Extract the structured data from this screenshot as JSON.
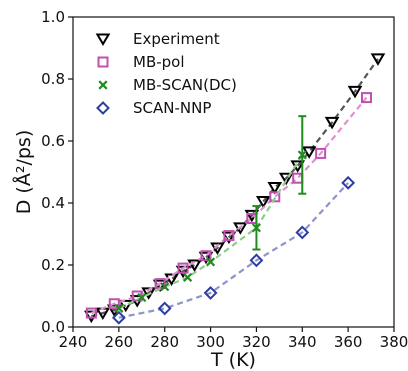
{
  "chart_data": {
    "type": "scatter",
    "xlabel": "T (K)",
    "ylabel": "D (Å²/ps)",
    "xlim": [
      240,
      380
    ],
    "ylim": [
      0.0,
      1.0
    ],
    "x_ticks": [
      "240",
      "260",
      "280",
      "300",
      "320",
      "340",
      "360",
      "380"
    ],
    "y_ticks": [
      "0.0",
      "0.2",
      "0.4",
      "0.6",
      "0.8",
      "1.0"
    ],
    "grid": false,
    "legend_position": "top-left",
    "series": [
      {
        "name": "Experiment",
        "marker": "triangle-down",
        "color": "#000000",
        "line_color": "#555555",
        "line_style": "dashed",
        "x": [
          248,
          253,
          258,
          263,
          268,
          273,
          278,
          283,
          288,
          293,
          298,
          303,
          308,
          313,
          318,
          323,
          328,
          333,
          338,
          343,
          353,
          363,
          373
        ],
        "y": [
          0.035,
          0.045,
          0.055,
          0.07,
          0.085,
          0.11,
          0.135,
          0.155,
          0.18,
          0.2,
          0.225,
          0.255,
          0.29,
          0.32,
          0.36,
          0.405,
          0.45,
          0.48,
          0.52,
          0.565,
          0.66,
          0.76,
          0.865
        ]
      },
      {
        "name": "MB-pol",
        "marker": "square",
        "color": "#c050b0",
        "line_color": "#e090d0",
        "line_style": "dashed",
        "x": [
          248,
          258,
          268,
          278,
          288,
          298,
          308,
          318,
          328,
          338,
          348,
          368
        ],
        "y": [
          0.045,
          0.075,
          0.1,
          0.14,
          0.19,
          0.23,
          0.295,
          0.35,
          0.42,
          0.48,
          0.56,
          0.74
        ]
      },
      {
        "name": "MB-SCAN(DC)",
        "marker": "x",
        "color": "#1e8c1e",
        "line_color": "#8ccc8c",
        "line_style": "dashed",
        "x": [
          260,
          270,
          280,
          290,
          300,
          320,
          340
        ],
        "y": [
          0.06,
          0.095,
          0.13,
          0.16,
          0.21,
          0.32,
          0.555
        ],
        "error": [
          0,
          0,
          0,
          0,
          0,
          0.07,
          0.125
        ]
      },
      {
        "name": "SCAN-NNP",
        "marker": "diamond",
        "color": "#2b3ea0",
        "line_color": "#8c94cc",
        "line_style": "dashed",
        "x": [
          260,
          280,
          300,
          320,
          340,
          360
        ],
        "y": [
          0.03,
          0.06,
          0.11,
          0.215,
          0.305,
          0.465
        ]
      }
    ]
  }
}
